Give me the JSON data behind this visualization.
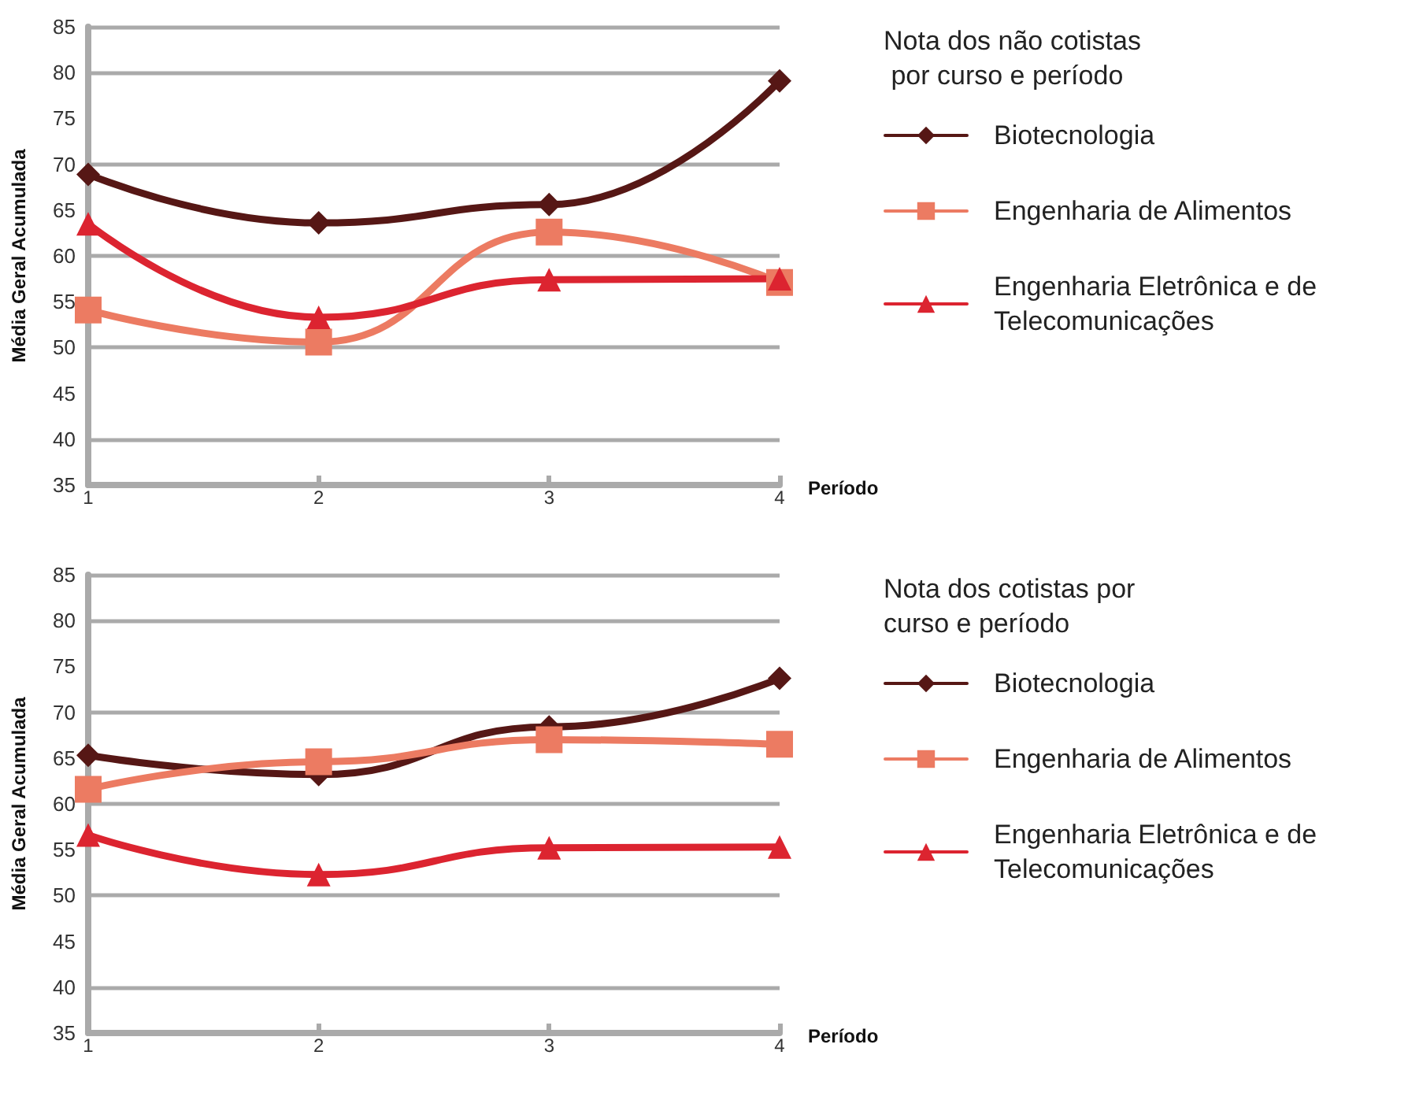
{
  "chart_data": [
    {
      "type": "line",
      "legend_title": "Nota dos não cotistas por curso e período",
      "xlabel": "Período",
      "ylabel": "Média Geral Acumulada",
      "x": [
        1,
        2,
        3,
        4
      ],
      "xlim": [
        1,
        4
      ],
      "xticks": [
        1,
        2,
        3,
        4
      ],
      "ylim": [
        35,
        85
      ],
      "yticks": [
        35,
        40,
        45,
        50,
        55,
        60,
        65,
        70,
        75,
        80,
        85
      ],
      "grid": "y",
      "legend": "right",
      "series": [
        {
          "name": "Biotecnologia",
          "color": "#561715",
          "marker": "diamond",
          "values": [
            68.9,
            63.6,
            65.6,
            79.1
          ]
        },
        {
          "name": "Engenharia de Alimentos",
          "color": "#ec7b62",
          "marker": "square",
          "values": [
            54.1,
            50.6,
            62.6,
            57.1
          ]
        },
        {
          "name": "Engenharia Eletrônica e de Telecomunicações",
          "color": "#dc2430",
          "marker": "triangle",
          "values": [
            63.5,
            53.3,
            57.4,
            57.5
          ]
        }
      ]
    },
    {
      "type": "line",
      "legend_title": "Nota dos cotistas por curso e período",
      "xlabel": "Período",
      "ylabel": "Média Geral Acumulada",
      "x": [
        1,
        2,
        3,
        4
      ],
      "xlim": [
        1,
        4
      ],
      "xticks": [
        1,
        2,
        3,
        4
      ],
      "ylim": [
        35,
        85
      ],
      "yticks": [
        35,
        40,
        45,
        50,
        55,
        60,
        65,
        70,
        75,
        80,
        85
      ],
      "grid": "y",
      "legend": "right",
      "series": [
        {
          "name": "Biotecnologia",
          "color": "#561715",
          "marker": "diamond",
          "values": [
            65.3,
            63.2,
            68.4,
            73.7
          ]
        },
        {
          "name": "Engenharia de Alimentos",
          "color": "#ec7b62",
          "marker": "square",
          "values": [
            61.6,
            64.6,
            67.0,
            66.5
          ]
        },
        {
          "name": "Engenharia Eletrônica e de Telecomunicações",
          "color": "#dc2430",
          "marker": "triangle",
          "values": [
            56.6,
            52.3,
            55.2,
            55.3
          ]
        }
      ]
    }
  ]
}
